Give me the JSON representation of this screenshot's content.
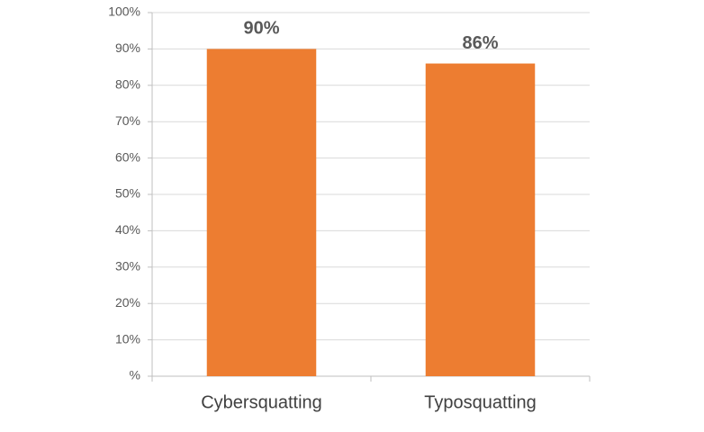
{
  "chart_data": {
    "type": "bar",
    "categories": [
      "Cybersquatting",
      "Typosquatting"
    ],
    "values": [
      90,
      86
    ],
    "value_labels": [
      "90%",
      "86%"
    ],
    "color": "#ED7D31",
    "ylim": [
      0,
      100
    ],
    "yticks": [
      {
        "value": 0,
        "label": "%"
      },
      {
        "value": 10,
        "label": "10%"
      },
      {
        "value": 20,
        "label": "20%"
      },
      {
        "value": 30,
        "label": "30%"
      },
      {
        "value": 40,
        "label": "40%"
      },
      {
        "value": 50,
        "label": "50%"
      },
      {
        "value": 60,
        "label": "60%"
      },
      {
        "value": 70,
        "label": "70%"
      },
      {
        "value": 80,
        "label": "80%"
      },
      {
        "value": 90,
        "label": "90%"
      },
      {
        "value": 100,
        "label": "100%"
      }
    ],
    "grid": true
  }
}
